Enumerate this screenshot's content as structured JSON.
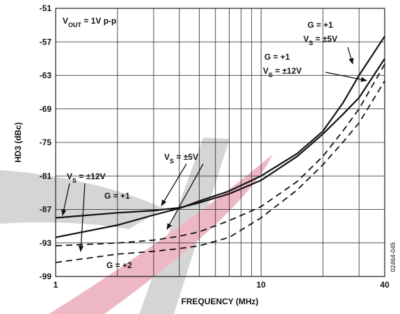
{
  "chart_data": {
    "type": "line",
    "log_x": true,
    "xlabel": "FREQUENCY (MHz)",
    "ylabel": "HD3 (dBc)",
    "side_label": "02464-045",
    "xlim": [
      1,
      40
    ],
    "xticks": [
      1,
      10,
      40
    ],
    "minor_xticks": [
      2,
      3,
      4,
      5,
      6,
      7,
      8,
      9,
      20,
      30
    ],
    "ylim": [
      -99,
      -51
    ],
    "yticks": [
      -99,
      -93,
      -87,
      -81,
      -75,
      -69,
      -63,
      -57,
      -51
    ],
    "grid": true,
    "x": [
      1,
      2,
      3,
      4,
      5,
      7,
      10,
      15,
      20,
      25,
      30,
      40
    ],
    "series": [
      {
        "color": "#111111",
        "dashed": false,
        "values": [
          -88.5,
          -87.6,
          -87.2,
          -86.7,
          -85.8,
          -84.2,
          -81.8,
          -77.5,
          -73.5,
          -70,
          -67,
          -60
        ]
      },
      {
        "color": "#111111",
        "dashed": false,
        "values": [
          -92,
          -89.8,
          -88,
          -86.8,
          -85.5,
          -83.7,
          -81,
          -77,
          -73,
          -68,
          -63,
          -56
        ]
      },
      {
        "color": "#111111",
        "dashed": true,
        "values": [
          -93.5,
          -93,
          -92.5,
          -91.8,
          -91,
          -89,
          -86.5,
          -82,
          -77.5,
          -73,
          -69,
          -61
        ]
      },
      {
        "color": "#111111",
        "dashed": true,
        "values": [
          -96.5,
          -95,
          -94.5,
          -94,
          -93.5,
          -92,
          -88.5,
          -83.5,
          -79,
          -75,
          -71.5,
          -64
        ]
      }
    ],
    "annotations": [
      {
        "lines": [
          [
            {
              "t": "V"
            },
            {
              "t": "OUT",
              "sub": true
            },
            {
              "t": " = 1V p-p"
            }
          ]
        ]
      },
      {
        "lines": [
          [
            {
              "t": "G = +1"
            }
          ],
          [
            {
              "t": "V"
            },
            {
              "t": "S",
              "sub": true
            },
            {
              "t": " = ±5V"
            }
          ]
        ]
      },
      {
        "lines": [
          [
            {
              "t": "G = +1"
            }
          ],
          [
            {
              "t": "V"
            },
            {
              "t": "S",
              "sub": true
            },
            {
              "t": " = ±12V"
            }
          ]
        ]
      },
      {
        "lines": [
          [
            {
              "t": "V"
            },
            {
              "t": "S",
              "sub": true
            },
            {
              "t": " = ±5V"
            }
          ]
        ]
      },
      {
        "lines": [
          [
            {
              "t": "V"
            },
            {
              "t": "S",
              "sub": true
            },
            {
              "t": " = ±12V"
            }
          ]
        ]
      },
      {
        "lines": [
          [
            {
              "t": "G = +1"
            }
          ]
        ]
      },
      {
        "lines": [
          [
            {
              "t": "G = +2"
            }
          ]
        ]
      }
    ]
  }
}
